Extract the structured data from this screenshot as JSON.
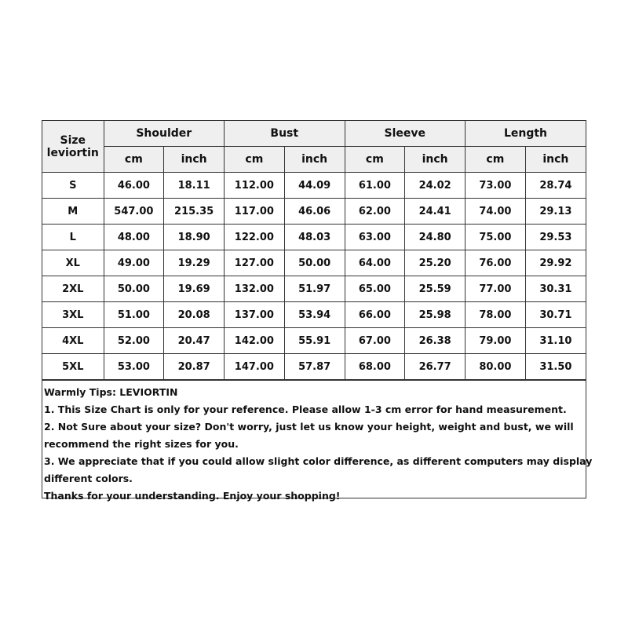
{
  "table": {
    "size_header": [
      "Size",
      "leviortin"
    ],
    "groups": [
      "Shoulder",
      "Bust",
      "Sleeve",
      "Length"
    ],
    "units": [
      "cm",
      "inch"
    ],
    "rows": [
      [
        "S",
        "46.00",
        "18.11",
        "112.00",
        "44.09",
        "61.00",
        "24.02",
        "73.00",
        "28.74"
      ],
      [
        "M",
        "547.00",
        "215.35",
        "117.00",
        "46.06",
        "62.00",
        "24.41",
        "74.00",
        "29.13"
      ],
      [
        "L",
        "48.00",
        "18.90",
        "122.00",
        "48.03",
        "63.00",
        "24.80",
        "75.00",
        "29.53"
      ],
      [
        "XL",
        "49.00",
        "19.29",
        "127.00",
        "50.00",
        "64.00",
        "25.20",
        "76.00",
        "29.92"
      ],
      [
        "2XL",
        "50.00",
        "19.69",
        "132.00",
        "51.97",
        "65.00",
        "25.59",
        "77.00",
        "30.31"
      ],
      [
        "3XL",
        "51.00",
        "20.08",
        "137.00",
        "53.94",
        "66.00",
        "25.98",
        "78.00",
        "30.71"
      ],
      [
        "4XL",
        "52.00",
        "20.47",
        "142.00",
        "55.91",
        "67.00",
        "26.38",
        "79.00",
        "31.10"
      ],
      [
        "5XL",
        "53.00",
        "20.87",
        "147.00",
        "57.87",
        "68.00",
        "26.77",
        "80.00",
        "31.50"
      ]
    ]
  },
  "notes": [
    "Warmly Tips: LEVIORTIN",
    "1. This Size Chart is only for your reference. Please allow 1-3 cm error for hand measurement.",
    "2. Not Sure about your size? Don't worry, just let us know your height, weight and bust, we will",
    "recommend the right sizes for you.",
    "3. We appreciate that if you could allow slight color difference, as different computers may display",
    "different colors.",
    "Thanks for your understanding. Enjoy your shopping!"
  ],
  "colors": {
    "header_bg": "#efefef",
    "border": "#333333"
  }
}
